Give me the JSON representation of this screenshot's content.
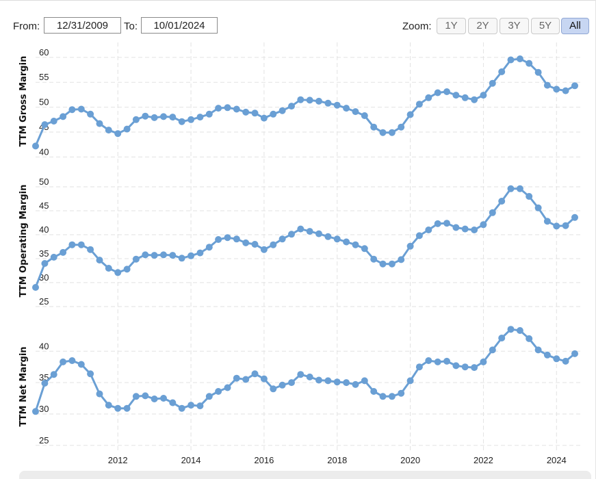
{
  "controls": {
    "from_label": "From:",
    "from_value": "12/31/2009",
    "to_label": "To:",
    "to_value": "10/01/2024",
    "zoom_label": "Zoom:",
    "zoom_options": [
      "1Y",
      "2Y",
      "3Y",
      "5Y",
      "All"
    ],
    "zoom_selected": "All"
  },
  "colors": {
    "series": "#6a9fd4",
    "grid": "#e2e2e2"
  },
  "chart_data": [
    {
      "type": "line",
      "ylabel": "TTM Gross Margin",
      "yticks": [
        40,
        45,
        50,
        55,
        60
      ],
      "ylim": [
        39.5,
        63
      ],
      "xticks": [
        "2012",
        "2014",
        "2016",
        "2018",
        "2020",
        "2022",
        "2024"
      ],
      "x_start": 2009.75,
      "x_step": 0.25,
      "values": [
        42.2,
        46.5,
        47.2,
        48.1,
        49.5,
        49.6,
        48.6,
        46.7,
        45.4,
        44.7,
        45.6,
        47.5,
        48.2,
        47.9,
        48.1,
        48.0,
        47.1,
        47.5,
        48.0,
        48.6,
        49.8,
        49.9,
        49.6,
        49.0,
        48.8,
        47.8,
        48.6,
        49.3,
        50.2,
        51.5,
        51.4,
        51.2,
        50.8,
        50.4,
        49.8,
        49.1,
        48.3,
        46.0,
        44.9,
        44.9,
        46.0,
        48.5,
        50.6,
        51.9,
        52.9,
        53.1,
        52.4,
        51.9,
        51.5,
        52.4,
        54.8,
        57.1,
        59.5,
        59.7,
        58.8,
        57.0,
        54.4,
        53.6,
        53.3,
        54.3
      ]
    },
    {
      "type": "line",
      "ylabel": "TTM Operating Margin",
      "yticks": [
        25,
        30,
        35,
        40,
        45,
        50
      ],
      "ylim": [
        24,
        53
      ],
      "xticks": [
        "2012",
        "2014",
        "2016",
        "2018",
        "2020",
        "2022",
        "2024"
      ],
      "x_start": 2009.75,
      "x_step": 0.25,
      "values": [
        29.0,
        34.0,
        35.3,
        36.3,
        37.9,
        37.9,
        36.9,
        34.7,
        33.0,
        32.1,
        32.8,
        34.9,
        35.8,
        35.7,
        35.8,
        35.7,
        35.1,
        35.6,
        36.2,
        37.4,
        39.0,
        39.4,
        39.1,
        38.3,
        38.0,
        36.9,
        37.9,
        39.1,
        40.1,
        41.2,
        40.7,
        40.2,
        39.6,
        39.1,
        38.5,
        37.9,
        37.1,
        34.9,
        33.9,
        33.9,
        34.8,
        37.6,
        39.8,
        41.0,
        42.3,
        42.4,
        41.5,
        41.2,
        41.0,
        42.1,
        44.6,
        47.0,
        49.6,
        49.6,
        48.0,
        45.6,
        42.8,
        41.8,
        41.9,
        43.6
      ]
    },
    {
      "type": "line",
      "ylabel": "TTM Net Margin",
      "yticks": [
        25,
        30,
        35,
        40
      ],
      "ylim": [
        24,
        44.5
      ],
      "xticks": [
        "2012",
        "2014",
        "2016",
        "2018",
        "2020",
        "2022",
        "2024"
      ],
      "x_start": 2009.75,
      "x_step": 0.25,
      "values": [
        30.4,
        34.9,
        36.3,
        38.3,
        38.5,
        37.9,
        36.4,
        33.2,
        31.4,
        30.9,
        30.9,
        32.8,
        32.9,
        32.4,
        32.5,
        31.8,
        30.9,
        31.4,
        31.3,
        32.8,
        33.6,
        34.2,
        35.7,
        35.5,
        36.4,
        35.6,
        34.0,
        34.6,
        35.0,
        36.3,
        35.9,
        35.4,
        35.3,
        35.1,
        35.0,
        34.7,
        35.3,
        33.6,
        32.8,
        32.8,
        33.3,
        35.3,
        37.5,
        38.5,
        38.3,
        38.4,
        37.7,
        37.5,
        37.4,
        38.3,
        40.2,
        42.1,
        43.5,
        43.3,
        42.0,
        40.2,
        39.4,
        38.8,
        38.4,
        39.6
      ]
    }
  ]
}
